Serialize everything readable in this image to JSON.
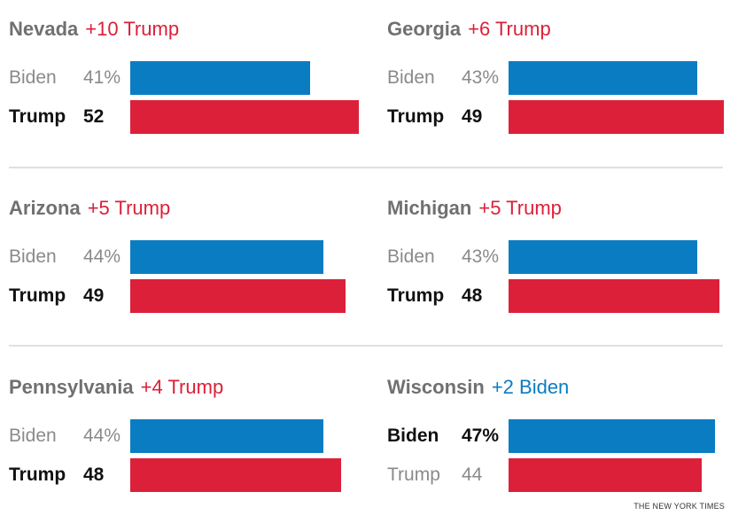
{
  "chart_data": {
    "type": "bar",
    "layout": "small-multiples",
    "scale_max": 52,
    "colors": {
      "biden": "#0a7dc2",
      "trump": "#dc2039",
      "state_name": "#707070"
    },
    "panels": [
      {
        "state": "Nevada",
        "margin": "+10 Trump",
        "leader": "trump",
        "rows": [
          {
            "candidate": "Biden",
            "display": "41%",
            "value": 41,
            "party": "biden"
          },
          {
            "candidate": "Trump",
            "display": "52",
            "value": 52,
            "party": "trump"
          }
        ]
      },
      {
        "state": "Georgia",
        "margin": "+6 Trump",
        "leader": "trump",
        "rows": [
          {
            "candidate": "Biden",
            "display": "43%",
            "value": 43,
            "party": "biden"
          },
          {
            "candidate": "Trump",
            "display": "49",
            "value": 49,
            "party": "trump"
          }
        ]
      },
      {
        "state": "Arizona",
        "margin": "+5 Trump",
        "leader": "trump",
        "rows": [
          {
            "candidate": "Biden",
            "display": "44%",
            "value": 44,
            "party": "biden"
          },
          {
            "candidate": "Trump",
            "display": "49",
            "value": 49,
            "party": "trump"
          }
        ]
      },
      {
        "state": "Michigan",
        "margin": "+5 Trump",
        "leader": "trump",
        "rows": [
          {
            "candidate": "Biden",
            "display": "43%",
            "value": 43,
            "party": "biden"
          },
          {
            "candidate": "Trump",
            "display": "48",
            "value": 48,
            "party": "trump"
          }
        ]
      },
      {
        "state": "Pennsylvania",
        "margin": "+4 Trump",
        "leader": "trump",
        "rows": [
          {
            "candidate": "Biden",
            "display": "44%",
            "value": 44,
            "party": "biden"
          },
          {
            "candidate": "Trump",
            "display": "48",
            "value": 48,
            "party": "trump"
          }
        ]
      },
      {
        "state": "Wisconsin",
        "margin": "+2 Biden",
        "leader": "biden",
        "rows": [
          {
            "candidate": "Biden",
            "display": "47%",
            "value": 47,
            "party": "biden"
          },
          {
            "candidate": "Trump",
            "display": "44",
            "value": 44,
            "party": "trump"
          }
        ]
      }
    ]
  },
  "credit": "THE NEW YORK TIMES"
}
